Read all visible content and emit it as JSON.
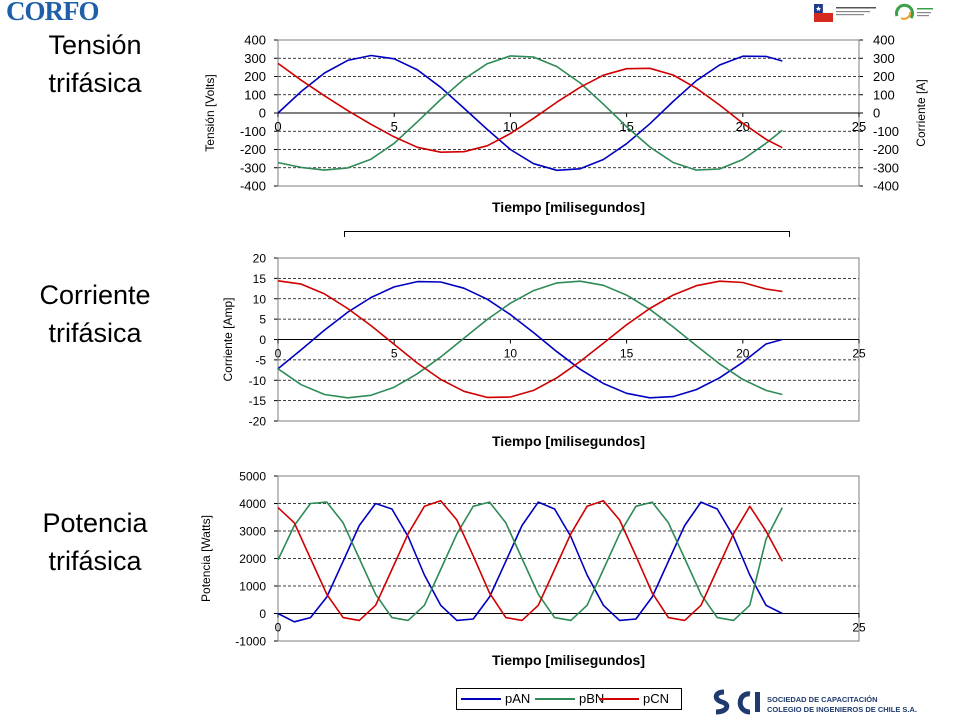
{
  "logos": {
    "corfo": "CORFO",
    "scci_line1": "SOCIEDAD DE CAPACITACIÓN",
    "scci_line2": "COLEGIO DE INGENIEROS DE CHILE S.A."
  },
  "labels": {
    "tension": [
      "Tensión",
      "trifásica"
    ],
    "corriente": [
      "Corriente",
      "trifásica"
    ],
    "potencia": [
      "Potencia",
      "trifásica"
    ]
  },
  "legend": [
    {
      "name": "pAN",
      "color": "#0000c0"
    },
    {
      "name": "pBN",
      "color": "#2e8b57"
    },
    {
      "name": "pCN",
      "color": "#d00000"
    }
  ],
  "chart_data": [
    {
      "type": "line",
      "xlabel": "Tiempo [milisegundos]",
      "ylabel": "Tensión [Volts]",
      "y2label": "Corriente [A]",
      "xlim": [
        0,
        25
      ],
      "ylim": [
        -400,
        400
      ],
      "xticks": [
        "0",
        "5",
        "10",
        "15",
        "20",
        "25"
      ],
      "yticks": [
        "400",
        "300",
        "200",
        "100",
        "0",
        "-100",
        "-200",
        "-300",
        "-400"
      ],
      "grid": true,
      "series": [
        {
          "color": "#0000c0",
          "x": [
            0,
            1,
            2,
            3,
            4,
            5,
            6,
            7,
            8,
            9,
            10,
            11,
            12,
            13,
            14,
            15,
            16,
            17,
            18,
            19,
            20,
            21,
            21.7
          ],
          "y": [
            0,
            118,
            219,
            288,
            315,
            297,
            236,
            141,
            27,
            -90,
            -200,
            -278,
            -314,
            -306,
            -255,
            -168,
            -59,
            63,
            177,
            263,
            311,
            310,
            285
          ]
        },
        {
          "color": "#2e8b57",
          "x": [
            0,
            1,
            2,
            3,
            4,
            5,
            6,
            7,
            8,
            9,
            10,
            11,
            12,
            13,
            14,
            15,
            16,
            17,
            18,
            19,
            20,
            21,
            21.7
          ],
          "y": [
            -272,
            -298,
            -313,
            -301,
            -253,
            -166,
            -48,
            74,
            185,
            270,
            313,
            307,
            254,
            165,
            48,
            -75,
            -186,
            -271,
            -313,
            -307,
            -255,
            -166,
            -95
          ]
        },
        {
          "color": "#d00000",
          "x": [
            0,
            1,
            2,
            3,
            4,
            5,
            6,
            7,
            8,
            9,
            10,
            11,
            12,
            13,
            14,
            15,
            16,
            17,
            18,
            19,
            20,
            21,
            21.7
          ],
          "y": [
            272,
            180,
            94,
            13,
            -62,
            -131,
            -188,
            -215,
            -212,
            -180,
            -113,
            -29,
            60,
            141,
            207,
            243,
            245,
            208,
            136,
            44,
            -56,
            -144,
            -190
          ]
        }
      ]
    },
    {
      "type": "line",
      "xlabel": "Tiempo [milisegundos]",
      "ylabel": "Corriente [Amp]",
      "xlim": [
        0,
        25
      ],
      "ylim": [
        -20,
        20
      ],
      "xticks": [
        "0",
        "5",
        "10",
        "15",
        "20",
        "25"
      ],
      "yticks": [
        "20",
        "15",
        "10",
        "5",
        "0",
        "-5",
        "-10",
        "-15",
        "-20"
      ],
      "grid": true,
      "series": [
        {
          "color": "#0000c0",
          "x": [
            0,
            1,
            2,
            3,
            4,
            5,
            6,
            7,
            8,
            9,
            10,
            11,
            12,
            13,
            14,
            15,
            16,
            17,
            18,
            19,
            20,
            21,
            21.7
          ],
          "y": [
            -7.2,
            -2.5,
            2.3,
            6.7,
            10.3,
            12.9,
            14.2,
            14.1,
            12.6,
            9.9,
            6.1,
            1.7,
            -3.0,
            -7.3,
            -10.8,
            -13.2,
            -14.3,
            -14.0,
            -12.3,
            -9.4,
            -5.6,
            -1.1,
            0
          ]
        },
        {
          "color": "#2e8b57",
          "x": [
            0,
            1,
            2,
            3,
            4,
            5,
            6,
            7,
            8,
            9,
            10,
            11,
            12,
            13,
            14,
            15,
            16,
            17,
            18,
            19,
            20,
            21,
            21.7
          ],
          "y": [
            -7.2,
            -11.1,
            -13.5,
            -14.3,
            -13.7,
            -11.7,
            -8.4,
            -4.3,
            0.3,
            4.9,
            8.9,
            12.0,
            13.9,
            14.3,
            13.3,
            10.9,
            7.4,
            3.1,
            -1.5,
            -6.0,
            -9.8,
            -12.5,
            -13.5
          ]
        },
        {
          "color": "#d00000",
          "x": [
            0,
            1,
            2,
            3,
            4,
            5,
            6,
            7,
            8,
            9,
            10,
            11,
            12,
            13,
            14,
            15,
            16,
            17,
            18,
            19,
            20,
            21,
            21.7
          ],
          "y": [
            14.4,
            13.6,
            11.2,
            7.6,
            3.4,
            -1.2,
            -5.8,
            -9.8,
            -12.7,
            -14.2,
            -14.1,
            -12.5,
            -9.4,
            -5.4,
            -0.9,
            3.6,
            7.6,
            10.9,
            13.2,
            14.3,
            14.0,
            12.4,
            11.8
          ]
        }
      ]
    },
    {
      "type": "line",
      "xlabel": "Tiempo [milisegundos]",
      "ylabel": "Potencia [Watts]",
      "xlim": [
        0,
        25
      ],
      "ylim": [
        -1000,
        5000
      ],
      "xticks": [
        "0",
        "25"
      ],
      "yticks": [
        "5000",
        "4000",
        "3000",
        "2000",
        "1000",
        "0",
        "-1000"
      ],
      "grid": true,
      "series": [
        {
          "color": "#0000c0",
          "x": [
            0,
            0.7,
            1.4,
            2.1,
            2.8,
            3.5,
            4.2,
            4.9,
            5.6,
            6.3,
            7.0,
            7.7,
            8.4,
            9.1,
            9.8,
            10.5,
            11.2,
            11.9,
            12.6,
            13.3,
            14.0,
            14.7,
            15.4,
            16.1,
            16.8,
            17.5,
            18.2,
            18.9,
            19.6,
            20.3,
            21.0,
            21.7
          ],
          "y": [
            0,
            -300,
            -150,
            600,
            1900,
            3200,
            4000,
            3800,
            2800,
            1400,
            300,
            -250,
            -200,
            600,
            1900,
            3200,
            4050,
            3800,
            2800,
            1400,
            300,
            -250,
            -200,
            600,
            1900,
            3200,
            4050,
            3800,
            2800,
            1400,
            300,
            0
          ]
        },
        {
          "color": "#2e8b57",
          "x": [
            0,
            0.7,
            1.4,
            2.1,
            2.8,
            3.5,
            4.2,
            4.9,
            5.6,
            6.3,
            7.0,
            7.7,
            8.4,
            9.1,
            9.8,
            10.5,
            11.2,
            11.9,
            12.6,
            13.3,
            14.0,
            14.7,
            15.4,
            16.1,
            16.8,
            17.5,
            18.2,
            18.9,
            19.6,
            20.3,
            21.0,
            21.7
          ],
          "y": [
            1950,
            3200,
            4000,
            4050,
            3300,
            2000,
            700,
            -150,
            -250,
            300,
            1600,
            2900,
            3900,
            4050,
            3300,
            2000,
            700,
            -150,
            -250,
            300,
            1600,
            2900,
            3900,
            4050,
            3300,
            2000,
            700,
            -150,
            -250,
            300,
            2700,
            3850
          ]
        },
        {
          "color": "#d00000",
          "x": [
            0,
            0.7,
            1.4,
            2.1,
            2.8,
            3.5,
            4.2,
            4.9,
            5.6,
            6.3,
            7.0,
            7.7,
            8.4,
            9.1,
            9.8,
            10.5,
            11.2,
            11.9,
            12.6,
            13.3,
            14.0,
            14.7,
            15.4,
            16.1,
            16.8,
            17.5,
            18.2,
            18.9,
            19.6,
            20.3,
            21.0,
            21.7
          ],
          "y": [
            3850,
            3300,
            2000,
            700,
            -150,
            -250,
            300,
            1600,
            2900,
            3900,
            4100,
            3400,
            2100,
            750,
            -150,
            -250,
            300,
            1600,
            2900,
            3900,
            4100,
            3400,
            2100,
            750,
            -150,
            -250,
            300,
            1600,
            2900,
            3900,
            3000,
            1900
          ]
        }
      ]
    }
  ]
}
